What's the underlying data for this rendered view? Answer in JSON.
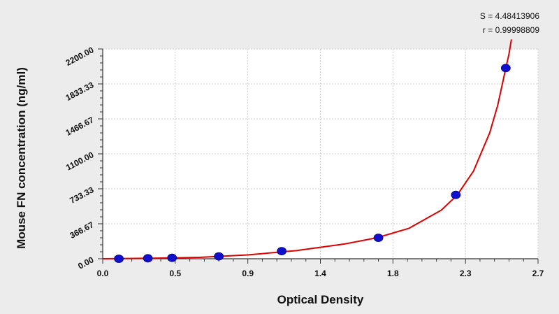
{
  "chart_data": {
    "type": "scatter",
    "xlabel": "Optical Density",
    "ylabel": "Mouse FN concentration (ng/ml)",
    "xlim": [
      0.0,
      2.7
    ],
    "ylim": [
      0.0,
      2200.0
    ],
    "x_ticks": [
      "0.0",
      "0.5",
      "0.9",
      "1.4",
      "1.8",
      "2.3",
      "2.7"
    ],
    "y_ticks": [
      "0.00",
      "366.67",
      "733.33",
      "1100.00",
      "1466.67",
      "1833.33",
      "2200.00"
    ],
    "grid": true,
    "annotations": {
      "s_value": "S = 4.48413906",
      "r_value": "r = 0.99998809"
    },
    "points": [
      {
        "x": 0.1,
        "y": 0
      },
      {
        "x": 0.28,
        "y": 5
      },
      {
        "x": 0.43,
        "y": 10
      },
      {
        "x": 0.72,
        "y": 25
      },
      {
        "x": 1.11,
        "y": 80
      },
      {
        "x": 1.71,
        "y": 220
      },
      {
        "x": 2.19,
        "y": 670
      },
      {
        "x": 2.5,
        "y": 2000
      }
    ],
    "fit_curve": [
      {
        "x": 0.0,
        "y": 0
      },
      {
        "x": 0.3,
        "y": 5
      },
      {
        "x": 0.6,
        "y": 15
      },
      {
        "x": 0.9,
        "y": 40
      },
      {
        "x": 1.2,
        "y": 85
      },
      {
        "x": 1.5,
        "y": 155
      },
      {
        "x": 1.7,
        "y": 220
      },
      {
        "x": 1.9,
        "y": 320
      },
      {
        "x": 2.1,
        "y": 510
      },
      {
        "x": 2.2,
        "y": 670
      },
      {
        "x": 2.3,
        "y": 920
      },
      {
        "x": 2.4,
        "y": 1320
      },
      {
        "x": 2.45,
        "y": 1610
      },
      {
        "x": 2.5,
        "y": 2000
      },
      {
        "x": 2.52,
        "y": 2150
      },
      {
        "x": 2.535,
        "y": 2300
      }
    ],
    "colors": {
      "point": "#1010cc",
      "curve": "#dd0000",
      "grid": "#cfcfcf",
      "axis": "#333333",
      "plot_bg": "#ffffff",
      "page_bg": "#ececec"
    }
  }
}
